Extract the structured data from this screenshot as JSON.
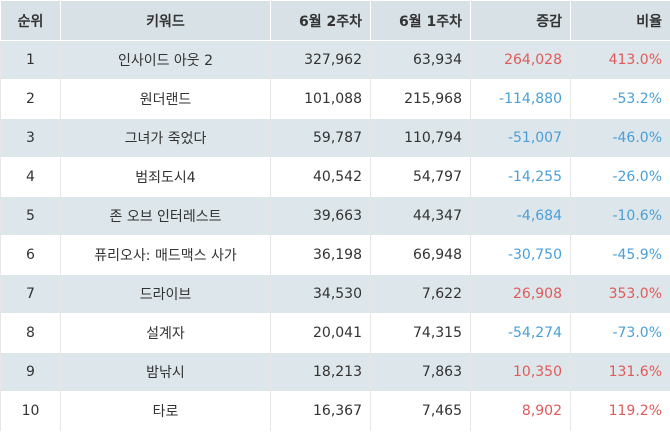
{
  "headers": {
    "rank": "순위",
    "keyword": "키워드",
    "week2": "6월 2주차",
    "week1": "6월 1주차",
    "diff": "증감",
    "ratio": "비율"
  },
  "rows": [
    {
      "rank": "1",
      "keyword": "인사이드 아웃 2",
      "week2": "327,962",
      "week1": "63,934",
      "diff": "264,028",
      "ratio": "413.0%",
      "sign": "pos"
    },
    {
      "rank": "2",
      "keyword": "원더랜드",
      "week2": "101,088",
      "week1": "215,968",
      "diff": "-114,880",
      "ratio": "-53.2%",
      "sign": "neg"
    },
    {
      "rank": "3",
      "keyword": "그녀가 죽었다",
      "week2": "59,787",
      "week1": "110,794",
      "diff": "-51,007",
      "ratio": "-46.0%",
      "sign": "neg"
    },
    {
      "rank": "4",
      "keyword": "범죄도시4",
      "week2": "40,542",
      "week1": "54,797",
      "diff": "-14,255",
      "ratio": "-26.0%",
      "sign": "neg"
    },
    {
      "rank": "5",
      "keyword": "존 오브 인터레스트",
      "week2": "39,663",
      "week1": "44,347",
      "diff": "-4,684",
      "ratio": "-10.6%",
      "sign": "neg"
    },
    {
      "rank": "6",
      "keyword": "퓨리오사: 매드맥스 사가",
      "week2": "36,198",
      "week1": "66,948",
      "diff": "-30,750",
      "ratio": "-45.9%",
      "sign": "neg"
    },
    {
      "rank": "7",
      "keyword": "드라이브",
      "week2": "34,530",
      "week1": "7,622",
      "diff": "26,908",
      "ratio": "353.0%",
      "sign": "pos"
    },
    {
      "rank": "8",
      "keyword": "설계자",
      "week2": "20,041",
      "week1": "74,315",
      "diff": "-54,274",
      "ratio": "-73.0%",
      "sign": "neg"
    },
    {
      "rank": "9",
      "keyword": "밤낚시",
      "week2": "18,213",
      "week1": "7,863",
      "diff": "10,350",
      "ratio": "131.6%",
      "sign": "pos"
    },
    {
      "rank": "10",
      "keyword": "타로",
      "week2": "16,367",
      "week1": "7,465",
      "diff": "8,902",
      "ratio": "119.2%",
      "sign": "pos"
    }
  ],
  "colors": {
    "header_bg": "#d7e1e6",
    "stripe_bg": "#dde6ea",
    "positive": "#e05a5a",
    "negative": "#4a9fd8"
  }
}
